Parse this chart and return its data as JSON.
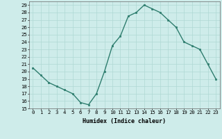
{
  "x": [
    0,
    1,
    2,
    3,
    4,
    5,
    6,
    7,
    8,
    9,
    10,
    11,
    12,
    13,
    14,
    15,
    16,
    17,
    18,
    19,
    20,
    21,
    22,
    23
  ],
  "y": [
    20.5,
    19.5,
    18.5,
    18.0,
    17.5,
    17.0,
    15.8,
    15.5,
    17.0,
    20.0,
    23.5,
    24.8,
    27.5,
    28.0,
    29.0,
    28.5,
    28.0,
    27.0,
    26.0,
    24.0,
    23.5,
    23.0,
    21.0,
    19.0
  ],
  "line_color": "#2e7d6e",
  "marker": "s",
  "marker_size": 2.0,
  "bg_color": "#ceecea",
  "grid_color": "#afd8d4",
  "xlabel": "Humidex (Indice chaleur)",
  "ylim": [
    15,
    29.5
  ],
  "xlim": [
    -0.5,
    23.5
  ],
  "yticks": [
    15,
    16,
    17,
    18,
    19,
    20,
    21,
    22,
    23,
    24,
    25,
    26,
    27,
    28,
    29
  ],
  "xticks": [
    0,
    1,
    2,
    3,
    4,
    5,
    6,
    7,
    8,
    9,
    10,
    11,
    12,
    13,
    14,
    15,
    16,
    17,
    18,
    19,
    20,
    21,
    22,
    23
  ],
  "xtick_labels": [
    "0",
    "1",
    "2",
    "3",
    "4",
    "5",
    "6",
    "7",
    "8",
    "9",
    "10",
    "11",
    "12",
    "13",
    "14",
    "15",
    "16",
    "17",
    "18",
    "19",
    "20",
    "21",
    "22",
    "23"
  ],
  "line_width": 1.0,
  "xlabel_fontsize": 6.0,
  "tick_fontsize": 5.2
}
